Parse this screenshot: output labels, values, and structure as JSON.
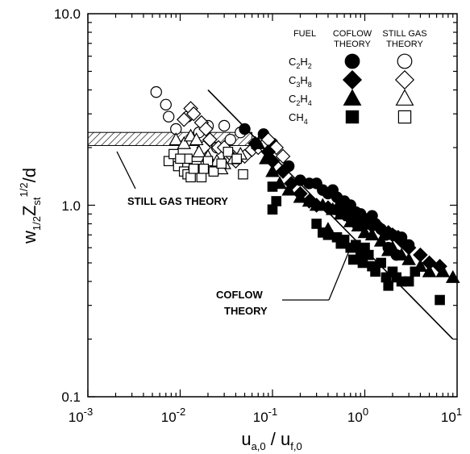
{
  "chart_data": {
    "type": "scatter",
    "x_scale": "log",
    "y_scale": "log",
    "xlim": [
      0.001,
      10
    ],
    "ylim": [
      0.1,
      10
    ],
    "x_ticks": [
      {
        "base": "10",
        "exp": "-3"
      },
      {
        "base": "10",
        "exp": "-2"
      },
      {
        "base": "10",
        "exp": "-1"
      },
      {
        "base": "10",
        "exp": "0"
      },
      {
        "base": "10",
        "exp": "1"
      }
    ],
    "y_ticks": [
      "0.1",
      "1.0",
      "10.0"
    ],
    "xlabel": {
      "main": "u",
      "sub1": "a,0",
      "mid": " / u",
      "sub2": "f,0"
    },
    "ylabel": {
      "main": "w",
      "sub1": "1/2",
      "mid": "Z",
      "sub2": "st",
      "sup": "1/2",
      "tail": "/d"
    },
    "legend": {
      "headers": [
        "FUEL",
        "COFLOW THEORY",
        "STILL GAS THEORY"
      ],
      "entries": [
        {
          "fuel": "C2H2",
          "label": {
            "a": "C",
            "b": "2",
            "c": "H",
            "d": "2"
          },
          "marker": "circle"
        },
        {
          "fuel": "C3H8",
          "label": {
            "a": "C",
            "b": "3",
            "c": "H",
            "d": "8"
          },
          "marker": "diamond"
        },
        {
          "fuel": "C2H4",
          "label": {
            "a": "C",
            "b": "2",
            "c": "H",
            "d": "4"
          },
          "marker": "triangle"
        },
        {
          "fuel": "CH4",
          "label": {
            "a": "CH",
            "b": "4",
            "c": "",
            "d": ""
          },
          "marker": "square"
        }
      ]
    },
    "annotations": {
      "still_gas": "STILL GAS THEORY",
      "coflow_1": "COFLOW",
      "coflow_2": "THEORY"
    },
    "theory_lines": {
      "coflow": {
        "x": [
          0.02,
          9.0
        ],
        "y": [
          4.0,
          0.2
        ]
      },
      "still_gas_band": {
        "x": [
          0.001,
          0.06
        ],
        "y": [
          2.05,
          2.4
        ]
      }
    },
    "series": [
      {
        "fuel": "C2H2",
        "kind": "still gas",
        "marker": "circle",
        "filled": false,
        "points": [
          [
            0.0055,
            3.9
          ],
          [
            0.007,
            3.35
          ],
          [
            0.0075,
            2.9
          ],
          [
            0.009,
            2.5
          ],
          [
            0.012,
            2.9
          ],
          [
            0.016,
            2.4
          ],
          [
            0.02,
            2.6
          ],
          [
            0.03,
            2.6
          ],
          [
            0.035,
            2.2
          ],
          [
            0.045,
            2.4
          ],
          [
            0.025,
            2.0
          ]
        ]
      },
      {
        "fuel": "C2H2",
        "kind": "coflow",
        "marker": "circle",
        "filled": true,
        "points": [
          [
            0.05,
            2.5
          ],
          [
            0.08,
            2.35
          ],
          [
            0.1,
            2.1
          ],
          [
            0.15,
            1.6
          ],
          [
            0.2,
            1.35
          ],
          [
            0.25,
            1.3
          ],
          [
            0.3,
            1.3
          ],
          [
            0.35,
            1.2
          ],
          [
            0.4,
            1.15
          ],
          [
            0.45,
            1.2
          ],
          [
            0.5,
            1.1
          ],
          [
            0.6,
            1.05
          ],
          [
            0.7,
            1.0
          ],
          [
            0.8,
            0.92
          ],
          [
            0.9,
            0.9
          ],
          [
            1.0,
            0.85
          ],
          [
            1.1,
            0.8
          ],
          [
            1.3,
            0.8
          ],
          [
            1.5,
            0.75
          ],
          [
            1.7,
            0.7
          ],
          [
            2.0,
            0.7
          ],
          [
            2.5,
            0.68
          ],
          [
            3.0,
            0.62
          ],
          [
            1.2,
            0.88
          ],
          [
            0.55,
            1.0
          ],
          [
            0.65,
            0.95
          ],
          [
            1.8,
            0.6
          ],
          [
            2.2,
            0.55
          ]
        ]
      },
      {
        "fuel": "C3H8",
        "kind": "still gas",
        "marker": "diamond",
        "filled": false,
        "points": [
          [
            0.013,
            3.2
          ],
          [
            0.014,
            3.0
          ],
          [
            0.017,
            2.7
          ],
          [
            0.011,
            2.8
          ],
          [
            0.019,
            2.5
          ],
          [
            0.021,
            2.2
          ],
          [
            0.026,
            2.0
          ],
          [
            0.035,
            1.85
          ],
          [
            0.04,
            1.7
          ],
          [
            0.05,
            1.8
          ],
          [
            0.06,
            1.95
          ],
          [
            0.07,
            2.0
          ],
          [
            0.08,
            2.05
          ],
          [
            0.09,
            2.2
          ],
          [
            0.11,
            2.0
          ],
          [
            0.13,
            1.8
          ],
          [
            0.018,
            2.0
          ],
          [
            0.03,
            2.0
          ]
        ]
      },
      {
        "fuel": "C3H8",
        "kind": "coflow",
        "marker": "diamond",
        "filled": true,
        "points": [
          [
            0.065,
            2.1
          ],
          [
            0.09,
            1.9
          ],
          [
            0.1,
            1.7
          ],
          [
            0.13,
            1.5
          ],
          [
            0.16,
            1.3
          ],
          [
            0.2,
            1.15
          ],
          [
            0.25,
            1.05
          ],
          [
            0.3,
            1.0
          ],
          [
            0.4,
            0.97
          ],
          [
            0.5,
            0.95
          ],
          [
            0.6,
            0.9
          ],
          [
            0.7,
            0.85
          ],
          [
            0.8,
            0.8
          ],
          [
            1.0,
            0.8
          ],
          [
            1.2,
            0.78
          ],
          [
            1.5,
            0.75
          ],
          [
            2.0,
            0.7
          ],
          [
            2.5,
            0.65
          ],
          [
            3.0,
            0.6
          ],
          [
            4.0,
            0.55
          ],
          [
            5.0,
            0.5
          ],
          [
            6.5,
            0.48
          ],
          [
            1.8,
            0.72
          ],
          [
            2.3,
            0.68
          ]
        ]
      },
      {
        "fuel": "C2H4",
        "kind": "still gas",
        "marker": "triangle",
        "filled": false,
        "points": [
          [
            0.009,
            2.2
          ],
          [
            0.011,
            2.1
          ],
          [
            0.013,
            2.3
          ],
          [
            0.016,
            1.9
          ],
          [
            0.02,
            1.8
          ],
          [
            0.025,
            1.7
          ],
          [
            0.03,
            1.65
          ],
          [
            0.038,
            1.75
          ],
          [
            0.045,
            1.85
          ],
          [
            0.015,
            2.2
          ],
          [
            0.028,
            1.55
          ]
        ]
      },
      {
        "fuel": "C2H4",
        "kind": "coflow",
        "marker": "triangle",
        "filled": true,
        "points": [
          [
            0.07,
            2.1
          ],
          [
            0.085,
            1.75
          ],
          [
            0.1,
            1.5
          ],
          [
            0.12,
            1.3
          ],
          [
            0.15,
            1.2
          ],
          [
            0.2,
            1.1
          ],
          [
            0.25,
            1.05
          ],
          [
            0.3,
            1.0
          ],
          [
            0.35,
            1.0
          ],
          [
            0.45,
            0.95
          ],
          [
            0.55,
            0.9
          ],
          [
            0.7,
            0.82
          ],
          [
            0.85,
            0.78
          ],
          [
            1.0,
            0.72
          ],
          [
            1.2,
            0.7
          ],
          [
            1.5,
            0.65
          ],
          [
            2.0,
            0.6
          ],
          [
            2.5,
            0.55
          ],
          [
            3.0,
            0.52
          ],
          [
            4.0,
            0.48
          ],
          [
            5.0,
            0.45
          ],
          [
            7.0,
            0.45
          ],
          [
            9.0,
            0.42
          ],
          [
            0.4,
            0.75
          ],
          [
            1.8,
            0.58
          ]
        ]
      },
      {
        "fuel": "CH4",
        "kind": "still gas",
        "marker": "square",
        "filled": false,
        "points": [
          [
            0.0075,
            1.7
          ],
          [
            0.0085,
            1.85
          ],
          [
            0.0095,
            1.6
          ],
          [
            0.011,
            1.5
          ],
          [
            0.012,
            1.45
          ],
          [
            0.013,
            1.4
          ],
          [
            0.015,
            1.6
          ],
          [
            0.017,
            1.4
          ],
          [
            0.02,
            1.7
          ],
          [
            0.023,
            1.5
          ],
          [
            0.028,
            1.65
          ],
          [
            0.033,
            1.9
          ],
          [
            0.041,
            1.75
          ],
          [
            0.048,
            1.45
          ],
          [
            0.012,
            1.75
          ],
          [
            0.014,
            1.55
          ],
          [
            0.01,
            1.75
          ],
          [
            0.018,
            1.55
          ]
        ]
      },
      {
        "fuel": "CH4",
        "kind": "coflow",
        "marker": "square",
        "filled": true,
        "points": [
          [
            0.1,
            1.25
          ],
          [
            0.11,
            1.05
          ],
          [
            0.1,
            0.95
          ],
          [
            0.3,
            0.8
          ],
          [
            0.35,
            0.72
          ],
          [
            0.4,
            0.7
          ],
          [
            0.5,
            0.68
          ],
          [
            0.55,
            0.63
          ],
          [
            0.6,
            0.66
          ],
          [
            0.7,
            0.6
          ],
          [
            0.8,
            0.62
          ],
          [
            0.9,
            0.55
          ],
          [
            0.95,
            0.5
          ],
          [
            1.0,
            0.6
          ],
          [
            1.1,
            0.55
          ],
          [
            1.2,
            0.48
          ],
          [
            1.3,
            0.45
          ],
          [
            1.5,
            0.5
          ],
          [
            1.7,
            0.42
          ],
          [
            2.0,
            0.45
          ],
          [
            2.2,
            0.42
          ],
          [
            2.5,
            0.4
          ],
          [
            3.0,
            0.4
          ],
          [
            3.5,
            0.45
          ],
          [
            6.5,
            0.32
          ],
          [
            0.75,
            0.52
          ],
          [
            1.8,
            0.38
          ]
        ]
      }
    ]
  }
}
